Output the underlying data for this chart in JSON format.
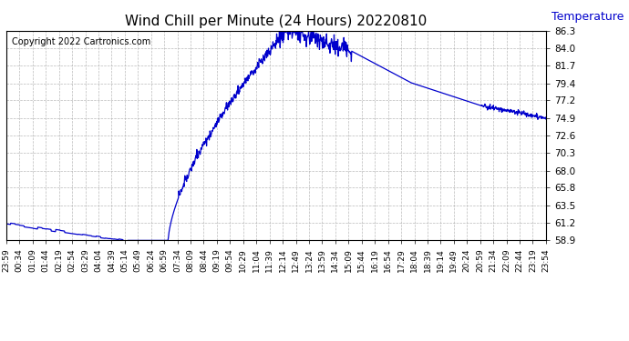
{
  "title": "Wind Chill per Minute (24 Hours) 20220810",
  "ylabel": "Temperature  (°F)",
  "copyright_text": "Copyright 2022 Cartronics.com",
  "line_color": "#0000cc",
  "background_color": "#ffffff",
  "grid_color": "#aaaaaa",
  "ylim": [
    58.9,
    86.3
  ],
  "yticks": [
    58.9,
    61.2,
    63.5,
    65.8,
    68.0,
    70.3,
    72.6,
    74.9,
    77.2,
    79.4,
    81.7,
    84.0,
    86.3
  ],
  "x_labels": [
    "23:59",
    "00:34",
    "01:09",
    "01:44",
    "02:19",
    "02:54",
    "03:29",
    "04:04",
    "04:39",
    "05:14",
    "05:49",
    "06:24",
    "06:59",
    "07:34",
    "08:09",
    "08:44",
    "09:19",
    "09:54",
    "10:29",
    "11:04",
    "11:39",
    "12:14",
    "12:49",
    "13:24",
    "13:59",
    "14:34",
    "15:09",
    "15:44",
    "16:19",
    "16:54",
    "17:29",
    "18:04",
    "18:39",
    "19:14",
    "19:49",
    "20:24",
    "20:59",
    "21:34",
    "22:09",
    "22:44",
    "23:19",
    "23:54"
  ],
  "num_points": 1440,
  "ylabel_color": "#0000cc",
  "title_fontsize": 11,
  "tick_fontsize": 7.5,
  "xtick_fontsize": 6.5,
  "copyright_fontsize": 7,
  "linewidth": 0.9
}
